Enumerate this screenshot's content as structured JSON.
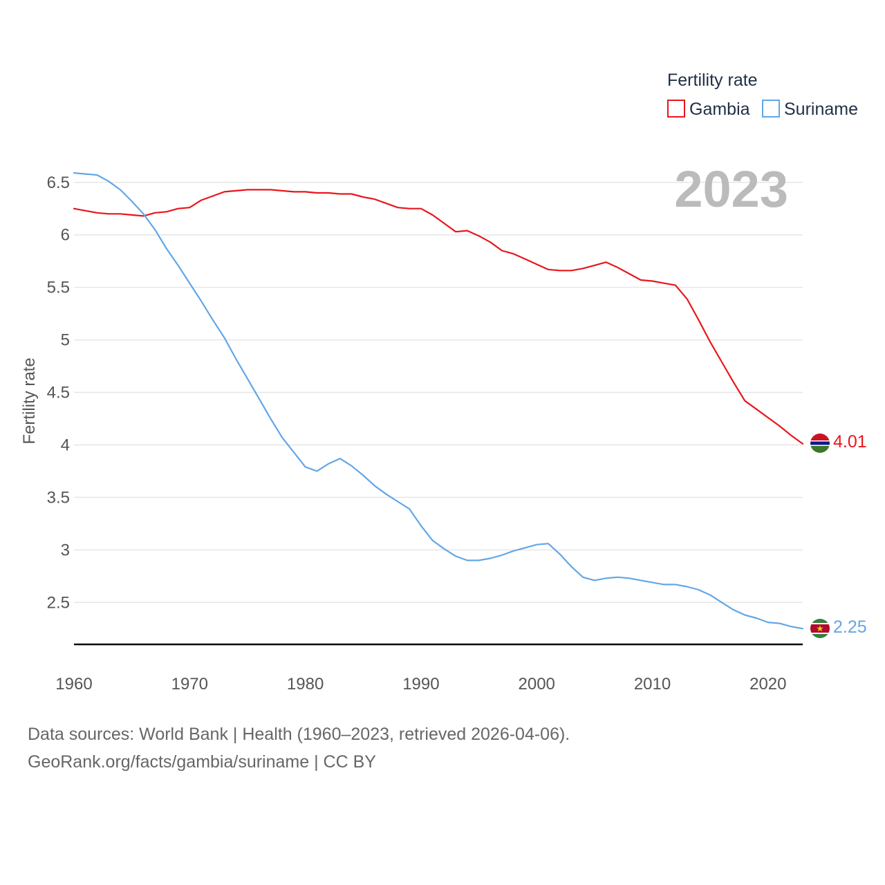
{
  "chart_data": {
    "type": "line",
    "title": "Fertility rate",
    "year_display": "2023",
    "ylabel": "Fertility rate",
    "xlabel": "",
    "xlim": [
      1960,
      2023
    ],
    "ylim": [
      2.1,
      6.65
    ],
    "yticks": [
      2.5,
      3,
      3.5,
      4,
      4.5,
      5,
      5.5,
      6,
      6.5
    ],
    "ytick_labels": [
      "2.5",
      "3",
      "3.5",
      "4",
      "4.5",
      "5",
      "5.5",
      "6",
      "6.5"
    ],
    "xticks": [
      1960,
      1970,
      1980,
      1990,
      2000,
      2010,
      2020
    ],
    "xtick_labels": [
      "1960",
      "1970",
      "1980",
      "1990",
      "2000",
      "2010",
      "2020"
    ],
    "grid": true,
    "legend": {
      "title": "Fertility rate",
      "position": "top-right"
    },
    "x": [
      1960,
      1961,
      1962,
      1963,
      1964,
      1965,
      1966,
      1967,
      1968,
      1969,
      1970,
      1971,
      1972,
      1973,
      1974,
      1975,
      1976,
      1977,
      1978,
      1979,
      1980,
      1981,
      1982,
      1983,
      1984,
      1985,
      1986,
      1987,
      1988,
      1989,
      1990,
      1991,
      1992,
      1993,
      1994,
      1995,
      1996,
      1997,
      1998,
      1999,
      2000,
      2001,
      2002,
      2003,
      2004,
      2005,
      2006,
      2007,
      2008,
      2009,
      2010,
      2011,
      2012,
      2013,
      2014,
      2015,
      2016,
      2017,
      2018,
      2019,
      2020,
      2021,
      2022,
      2023
    ],
    "series": [
      {
        "name": "Gambia",
        "color": "#e8161b",
        "end_label": "4.01",
        "values": [
          6.25,
          6.23,
          6.21,
          6.2,
          6.2,
          6.19,
          6.18,
          6.21,
          6.22,
          6.25,
          6.26,
          6.33,
          6.37,
          6.41,
          6.42,
          6.43,
          6.43,
          6.43,
          6.42,
          6.41,
          6.41,
          6.4,
          6.4,
          6.39,
          6.39,
          6.36,
          6.34,
          6.3,
          6.26,
          6.25,
          6.25,
          6.19,
          6.11,
          6.03,
          6.04,
          5.99,
          5.93,
          5.85,
          5.82,
          5.77,
          5.72,
          5.67,
          5.66,
          5.66,
          5.68,
          5.71,
          5.74,
          5.69,
          5.63,
          5.57,
          5.56,
          5.54,
          5.52,
          5.39,
          5.19,
          4.98,
          4.79,
          4.6,
          4.42,
          4.34,
          4.26,
          4.18,
          4.09,
          4.01
        ]
      },
      {
        "name": "Suriname",
        "color": "#62a6e8",
        "end_label": "2.25",
        "values": [
          6.59,
          6.58,
          6.57,
          6.51,
          6.43,
          6.32,
          6.2,
          6.05,
          5.87,
          5.71,
          5.54,
          5.37,
          5.19,
          5.02,
          4.82,
          4.63,
          4.44,
          4.25,
          4.07,
          3.93,
          3.79,
          3.75,
          3.82,
          3.87,
          3.8,
          3.71,
          3.61,
          3.53,
          3.46,
          3.39,
          3.23,
          3.09,
          3.01,
          2.94,
          2.9,
          2.9,
          2.92,
          2.95,
          2.99,
          3.02,
          3.05,
          3.06,
          2.96,
          2.84,
          2.74,
          2.71,
          2.73,
          2.74,
          2.73,
          2.71,
          2.69,
          2.67,
          2.67,
          2.65,
          2.62,
          2.57,
          2.5,
          2.43,
          2.38,
          2.35,
          2.31,
          2.3,
          2.27,
          2.25
        ]
      }
    ]
  },
  "source": {
    "line1": "Data sources: World Bank | Health (1960–2023, retrieved 2026-04-06).",
    "line2": "GeoRank.org/facts/gambia/suriname | CC BY"
  }
}
